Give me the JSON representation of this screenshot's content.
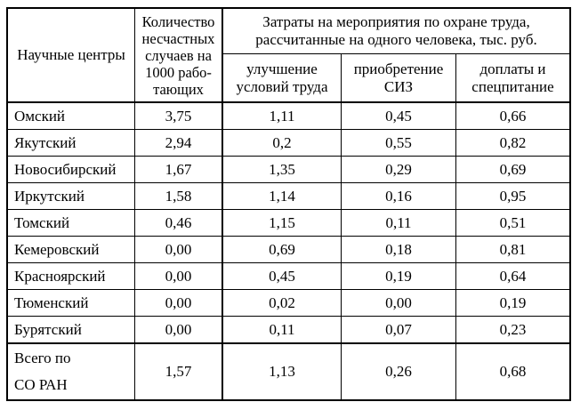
{
  "headers": {
    "centers": "Научные центры",
    "accidents": "Количество несчастных случаев на 1000 рабо-тающих",
    "costs_group": "Затраты на мероприятия по охране труда, рассчитанные на одного человека, тыс. руб.",
    "costs_sub": [
      "улучшение условий труда",
      "приобретение СИЗ",
      "доплаты и спецпитание"
    ]
  },
  "rows": [
    {
      "name": "Омский",
      "accidents": "3,75",
      "conditions": "1,11",
      "siz": "0,45",
      "payments": "0,66"
    },
    {
      "name": "Якутский",
      "accidents": "2,94",
      "conditions": "0,2",
      "siz": "0,55",
      "payments": "0,82"
    },
    {
      "name": "Новосибирский",
      "accidents": "1,67",
      "conditions": "1,35",
      "siz": "0,29",
      "payments": "0,69"
    },
    {
      "name": "Иркутский",
      "accidents": "1,58",
      "conditions": "1,14",
      "siz": "0,16",
      "payments": "0,95"
    },
    {
      "name": "Томский",
      "accidents": "0,46",
      "conditions": "1,15",
      "siz": "0,11",
      "payments": "0,51"
    },
    {
      "name": "Кемеровский",
      "accidents": "0,00",
      "conditions": "0,69",
      "siz": "0,18",
      "payments": "0,81"
    },
    {
      "name": "Красноярский",
      "accidents": "0,00",
      "conditions": "0,45",
      "siz": "0,19",
      "payments": "0,64"
    },
    {
      "name": "Тюменский",
      "accidents": "0,00",
      "conditions": "0,02",
      "siz": "0,00",
      "payments": "0,19"
    },
    {
      "name": "Бурятский",
      "accidents": "0,00",
      "conditions": "0,11",
      "siz": "0,07",
      "payments": "0,23"
    }
  ],
  "total": {
    "name_line1": "Всего по",
    "name_line2": "СО РАН",
    "accidents": "1,57",
    "conditions": "1,13",
    "siz": "0,26",
    "payments": "0,68"
  }
}
